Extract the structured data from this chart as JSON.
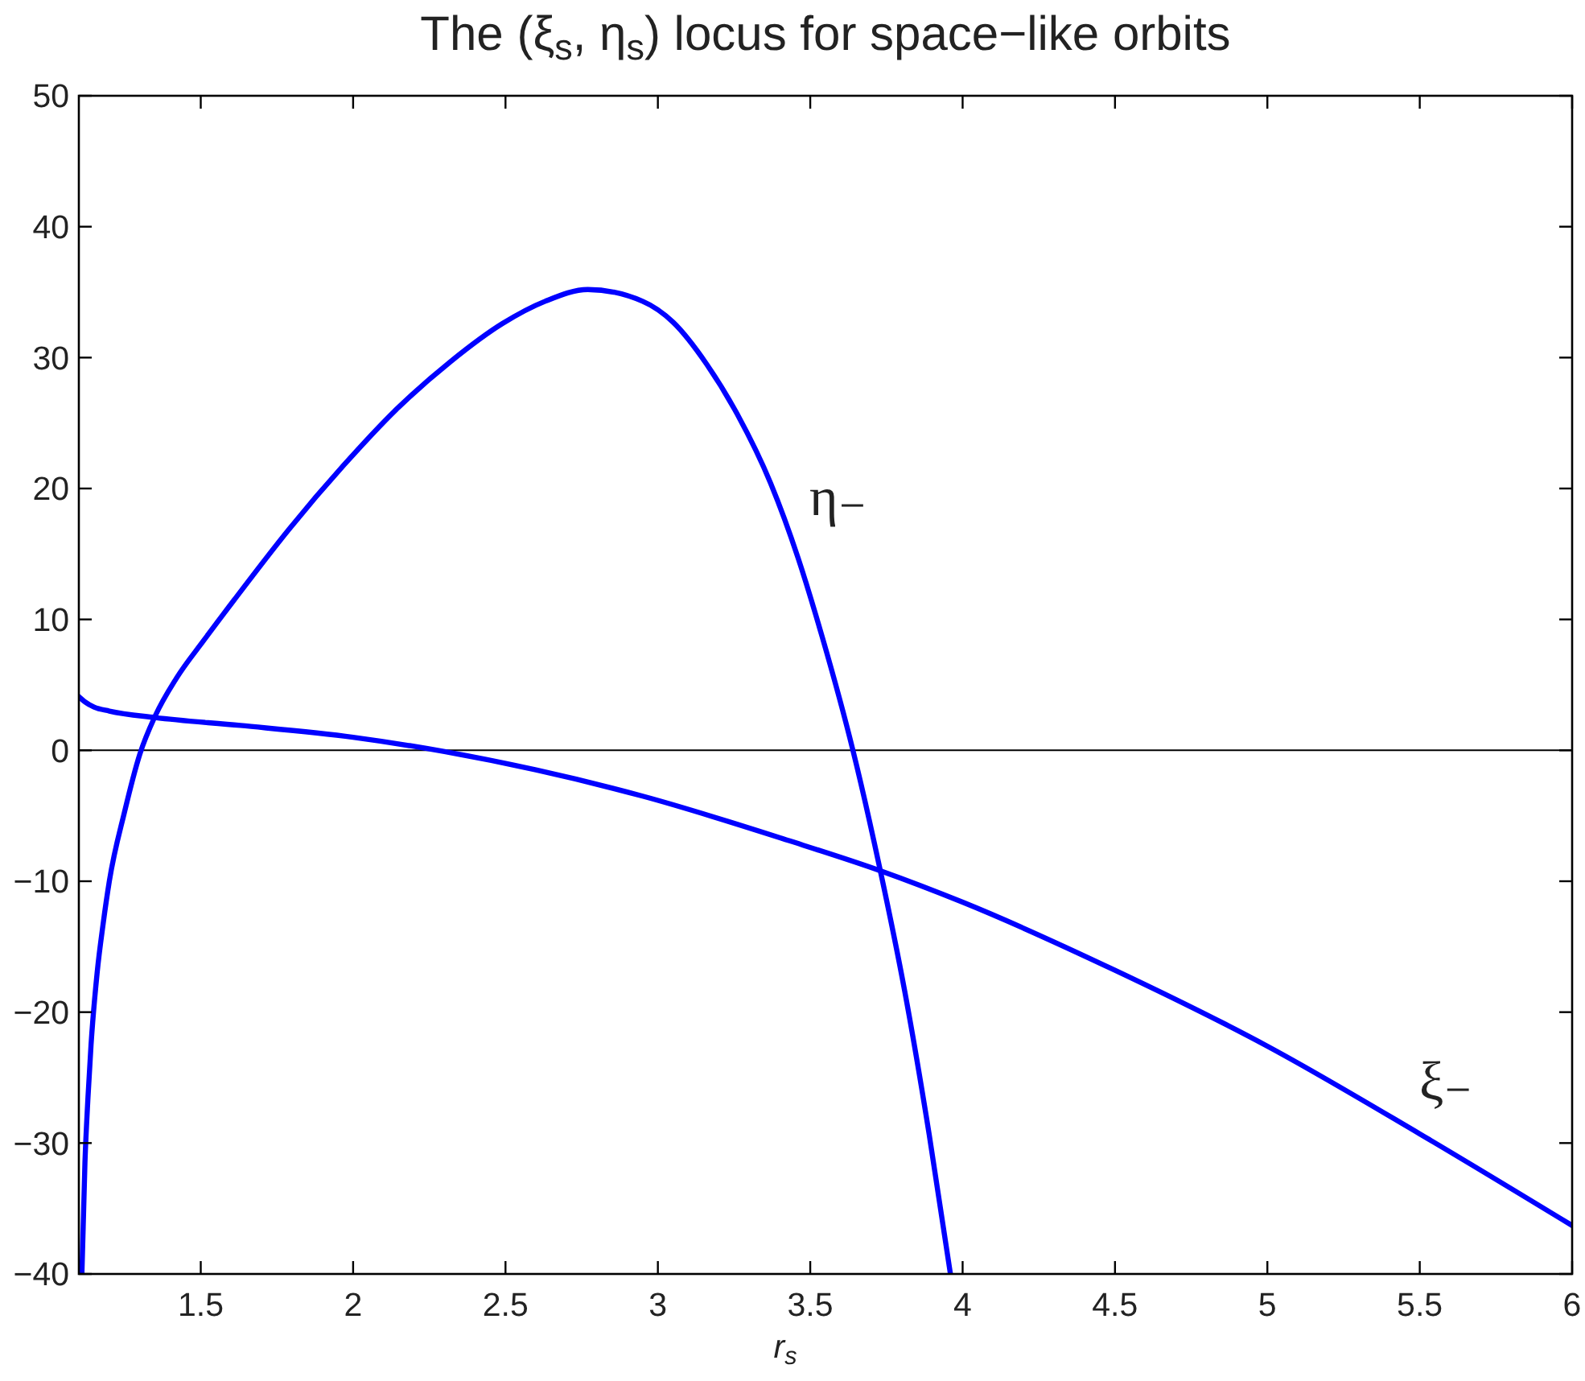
{
  "chart_data": {
    "type": "line",
    "title": "The (ξ$_{s}$, η$_{s}$) locus for space−like orbits",
    "xlabel": "r$_{s}$",
    "xlim": [
      1.1,
      6
    ],
    "xticks": [
      1.5,
      2,
      2.5,
      3,
      3.5,
      4,
      4.5,
      5,
      5.5,
      6
    ],
    "ylim": [
      -40,
      50
    ],
    "yticks": [
      {
        "value": -40,
        "label": "−40"
      },
      {
        "value": -30,
        "label": "−30"
      },
      {
        "value": -20,
        "label": "−20"
      },
      {
        "value": -10,
        "label": "−10"
      },
      0,
      10,
      20,
      30,
      40,
      50
    ],
    "ref_lines": [
      {
        "axis": "y",
        "value": 0,
        "color": "#000000"
      }
    ],
    "series": [
      {
        "name": "η₋",
        "color": "#0000ff",
        "x": [
          1.11,
          1.12,
          1.13,
          1.14,
          1.16,
          1.18,
          1.2,
          1.25,
          1.3,
          1.35,
          1.42,
          1.51,
          1.61,
          1.79,
          1.97,
          2.14,
          2.32,
          2.49,
          2.63,
          2.77,
          2.95,
          3.05,
          3.16,
          3.26,
          3.37,
          3.46,
          3.54,
          3.64,
          3.73,
          3.81,
          3.89,
          3.96
        ],
        "values": [
          -40,
          -31.5,
          -26.5,
          -22.5,
          -17,
          -13.2,
          -10,
          -4.7,
          -0.3,
          2.6,
          5.5,
          8.4,
          11.5,
          16.9,
          21.8,
          26.0,
          29.7,
          32.6,
          34.3,
          35.2,
          34.3,
          32.7,
          29.5,
          25.7,
          20.4,
          14.7,
          8.6,
          0,
          -9.2,
          -18.4,
          -29.3,
          -40
        ]
      },
      {
        "name": "ξ₋",
        "color": "#0000ff",
        "x": [
          1.1,
          1.12,
          1.15,
          1.2,
          1.35,
          1.63,
          2.0,
          2.3,
          2.6,
          2.95,
          3.43,
          3.73,
          4.0,
          4.5,
          5.0,
          5.5,
          6.0
        ],
        "values": [
          4.1,
          3.7,
          3.3,
          3.0,
          2.5,
          1.9,
          1.0,
          -0.1,
          -1.5,
          -3.5,
          -6.9,
          -9.2,
          -11.6,
          -16.8,
          -22.6,
          -29.3,
          -36.3
        ]
      }
    ]
  }
}
